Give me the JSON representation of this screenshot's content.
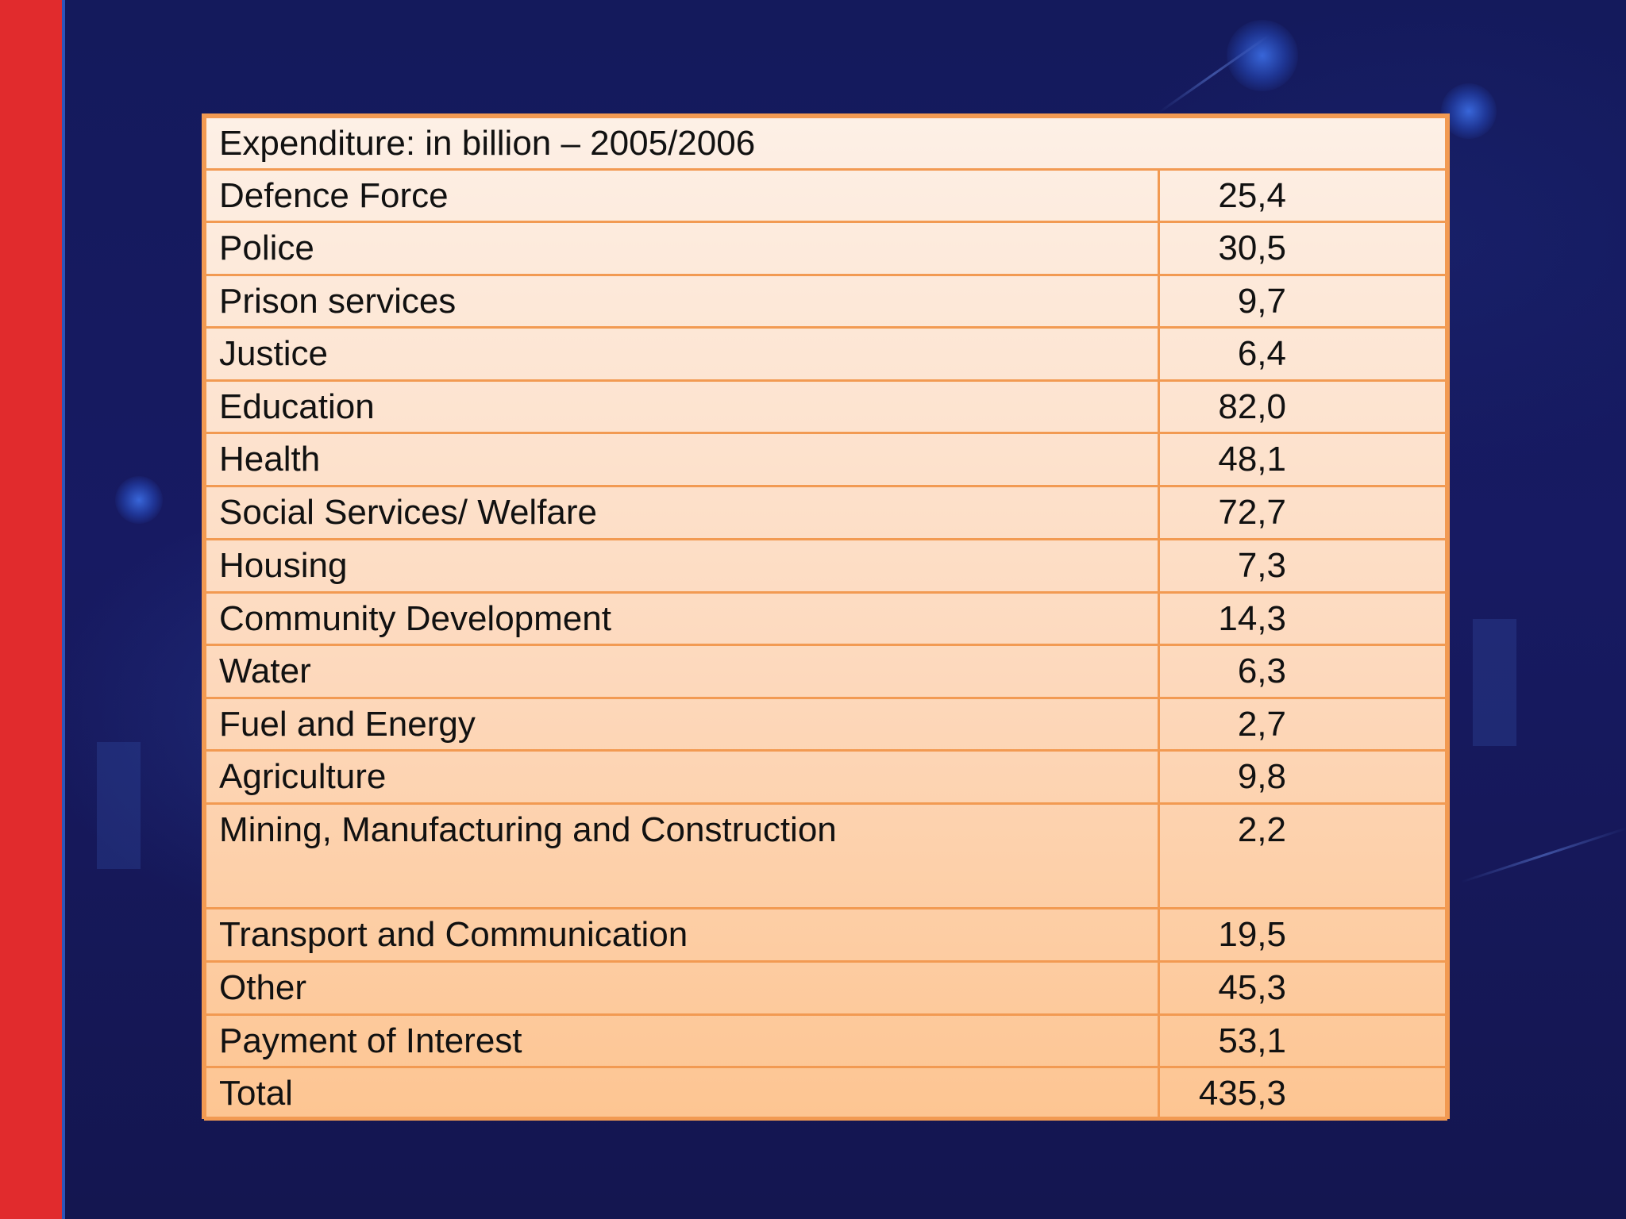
{
  "table": {
    "header": "Expenditure: in billion – 2005/2006",
    "rows": [
      {
        "label": "Defence Force",
        "value": "25,4"
      },
      {
        "label": "Police",
        "value": "30,5"
      },
      {
        "label": "Prison services",
        "value": "9,7"
      },
      {
        "label": "Justice",
        "value": "6,4"
      },
      {
        "label": "Education",
        "value": "82,0"
      },
      {
        "label": "Health",
        "value": "48,1"
      },
      {
        "label": "Social Services/ Welfare",
        "value": "72,7"
      },
      {
        "label": "Housing",
        "value": "7,3"
      },
      {
        "label": "Community Development",
        "value": "14,3"
      },
      {
        "label": "Water",
        "value": "6,3"
      },
      {
        "label": "Fuel and Energy",
        "value": "2,7"
      },
      {
        "label": "Agriculture",
        "value": "9,8"
      },
      {
        "label": "Mining, Manufacturing and Construction",
        "value": "2,2"
      },
      {
        "label": "Transport and Communication",
        "value": "19,5"
      },
      {
        "label": "Other",
        "value": "45,3"
      },
      {
        "label": "Payment of Interest",
        "value": "53,1"
      },
      {
        "label": "Total",
        "value": "435,3"
      }
    ]
  },
  "colors": {
    "sidebar": "#e12b2d",
    "table_border": "#f29a52",
    "background": "#15155a"
  }
}
